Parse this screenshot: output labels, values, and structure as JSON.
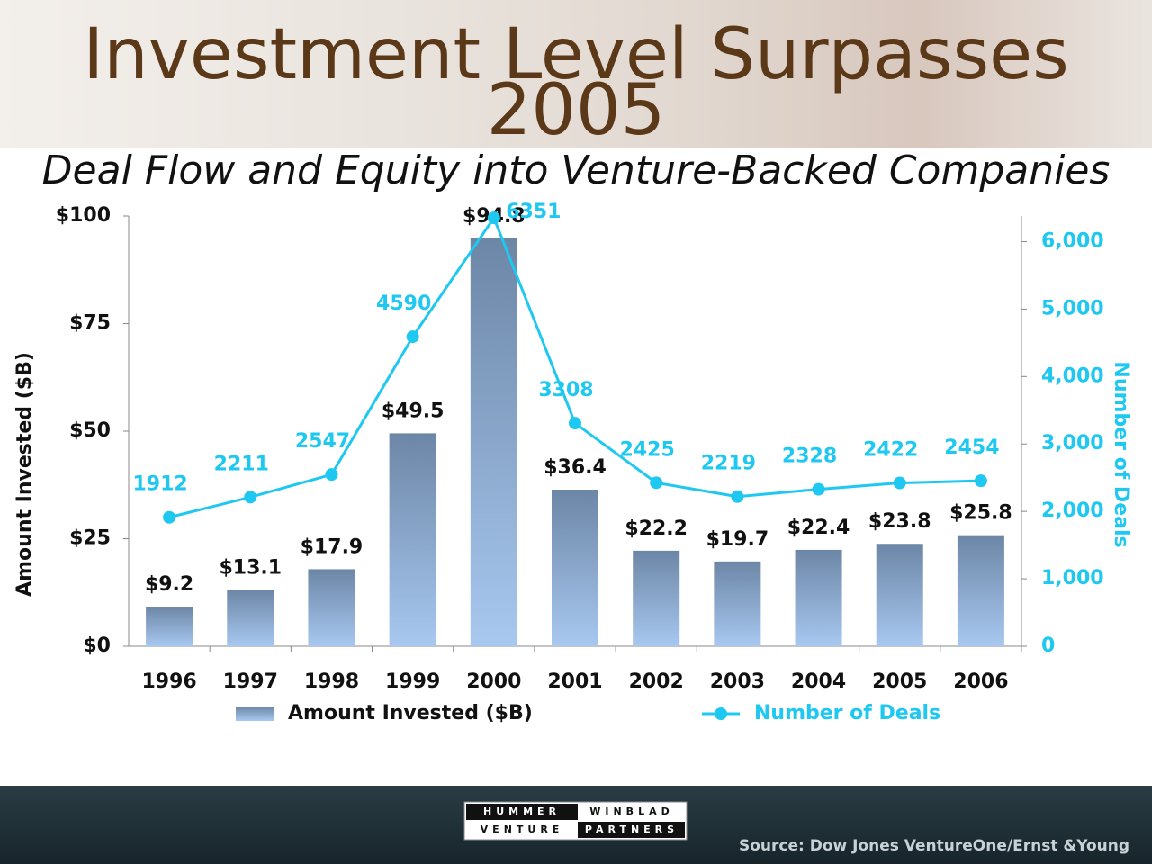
{
  "chart_data": {
    "type": "bar-line",
    "title": "Investment Level Surpasses 2005",
    "subtitle": "Deal Flow and Equity into Venture-Backed Companies",
    "y_label": "Amount Invested ($B)",
    "y2_label": "Number of Deals",
    "categories": [
      "1996",
      "1997",
      "1998",
      "1999",
      "2000",
      "2001",
      "2002",
      "2003",
      "2004",
      "2005",
      "2006"
    ],
    "series": [
      {
        "name": "Amount Invested ($B)",
        "type": "bar",
        "color": "#7f9cc0",
        "values": [
          9.2,
          13.1,
          17.9,
          49.5,
          94.8,
          36.4,
          22.2,
          19.7,
          22.4,
          23.8,
          25.8
        ],
        "value_labels": [
          "$9.2",
          "$13.1",
          "$17.9",
          "$49.5",
          "$94.8",
          "$36.4",
          "$22.2",
          "$19.7",
          "$22.4",
          "$23.8",
          "$25.8"
        ]
      },
      {
        "name": "Number of Deals",
        "type": "line",
        "axis": "y2",
        "color": "#1ec8f0",
        "values": [
          1912,
          2211,
          2547,
          4590,
          6351,
          3308,
          2425,
          2219,
          2328,
          2422,
          2454
        ]
      }
    ],
    "ylim": [
      0,
      100
    ],
    "yticks": [
      {
        "value": 0,
        "label": "$0"
      },
      {
        "value": 25,
        "label": "$25"
      },
      {
        "value": 50,
        "label": "$50"
      },
      {
        "value": 75,
        "label": "$75"
      },
      {
        "value": 100,
        "label": "$100"
      }
    ],
    "y2lim": [
      0,
      6380
    ],
    "y2ticks": [
      0,
      {
        "value": 1000,
        "label": "1,000"
      },
      {
        "value": 2000,
        "label": "2,000"
      },
      {
        "value": 3000,
        "label": "3,000"
      },
      {
        "value": 4000,
        "label": "4,000"
      },
      {
        "value": 5000,
        "label": "5,000"
      },
      {
        "value": 6000,
        "label": "6,000"
      }
    ],
    "legend": "bottom"
  },
  "footer": {
    "logo": [
      "HUMMER",
      "WINBLAD",
      "VENTURE",
      "PARTNERS"
    ],
    "source": "Source: Dow Jones VentureOne/Ernst &Young"
  }
}
